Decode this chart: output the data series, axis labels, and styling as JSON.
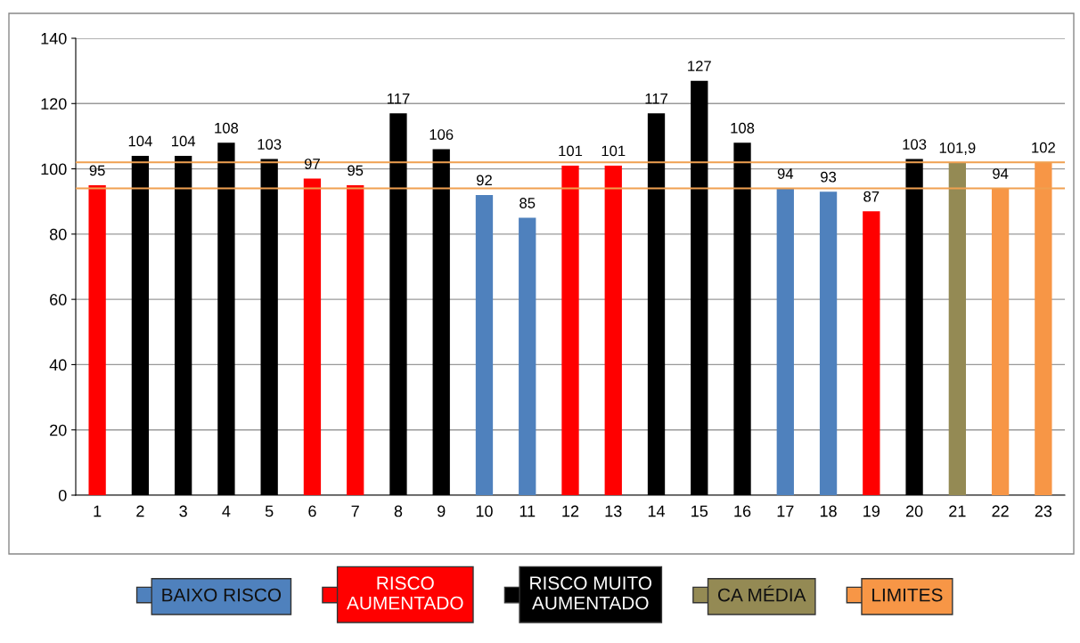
{
  "chart_data": {
    "type": "bar",
    "categories": [
      "1",
      "2",
      "3",
      "4",
      "5",
      "6",
      "7",
      "8",
      "9",
      "10",
      "11",
      "12",
      "13",
      "14",
      "15",
      "16",
      "17",
      "18",
      "19",
      "20",
      "21",
      "22",
      "23"
    ],
    "series": [
      {
        "name": "BAIXO RISCO",
        "color": "#4f81bd",
        "values": [
          null,
          null,
          null,
          null,
          null,
          null,
          null,
          null,
          null,
          92,
          85,
          null,
          null,
          null,
          null,
          null,
          94,
          93,
          null,
          null,
          null,
          null,
          null
        ],
        "value_labels": [
          null,
          null,
          null,
          null,
          null,
          null,
          null,
          null,
          null,
          "92",
          "85",
          null,
          null,
          null,
          null,
          null,
          "94",
          "93",
          null,
          null,
          null,
          null,
          null
        ]
      },
      {
        "name": "RISCO AUMENTADO",
        "color": "#ff0000",
        "values": [
          95,
          null,
          null,
          null,
          null,
          97,
          95,
          null,
          null,
          null,
          null,
          101,
          101,
          null,
          null,
          null,
          null,
          null,
          87,
          null,
          null,
          null,
          null
        ],
        "value_labels": [
          "95",
          null,
          null,
          null,
          null,
          "97",
          "95",
          null,
          null,
          null,
          null,
          "101",
          "101",
          null,
          null,
          null,
          null,
          null,
          "87",
          null,
          null,
          null,
          null
        ]
      },
      {
        "name": "RISCO MUITO AUMENTADO",
        "color": "#000000",
        "values": [
          null,
          104,
          104,
          108,
          103,
          null,
          null,
          117,
          106,
          null,
          null,
          null,
          null,
          117,
          127,
          108,
          null,
          null,
          null,
          103,
          null,
          null,
          null
        ],
        "value_labels": [
          null,
          "104",
          "104",
          "108",
          "103",
          null,
          null,
          "117",
          "106",
          null,
          null,
          null,
          null,
          "117",
          "127",
          "108",
          null,
          null,
          null,
          "103",
          null,
          null,
          null
        ]
      },
      {
        "name": "CA MÉDIA",
        "color": "#948a54",
        "values": [
          null,
          null,
          null,
          null,
          null,
          null,
          null,
          null,
          null,
          null,
          null,
          null,
          null,
          null,
          null,
          null,
          null,
          null,
          null,
          null,
          101.9,
          null,
          null
        ],
        "value_labels": [
          null,
          null,
          null,
          null,
          null,
          null,
          null,
          null,
          null,
          null,
          null,
          null,
          null,
          null,
          null,
          null,
          null,
          null,
          null,
          null,
          "101,9",
          null,
          null
        ]
      },
      {
        "name": "LIMITES",
        "color": "#f79646",
        "values": [
          null,
          null,
          null,
          null,
          null,
          null,
          null,
          null,
          null,
          null,
          null,
          null,
          null,
          null,
          null,
          null,
          null,
          null,
          null,
          null,
          null,
          94,
          102
        ],
        "value_labels": [
          null,
          null,
          null,
          null,
          null,
          null,
          null,
          null,
          null,
          null,
          null,
          null,
          null,
          null,
          null,
          null,
          null,
          null,
          null,
          null,
          null,
          "94",
          "102"
        ]
      }
    ],
    "ylim": [
      0,
      140
    ],
    "yticks": [
      0,
      20,
      40,
      60,
      80,
      100,
      120,
      140
    ],
    "grid": "y",
    "legend": "bottom",
    "ref_lines": [
      {
        "axis": "y",
        "value": 94,
        "color": "#f0a050"
      },
      {
        "axis": "y",
        "value": 102,
        "color": "#f0a050"
      }
    ]
  }
}
